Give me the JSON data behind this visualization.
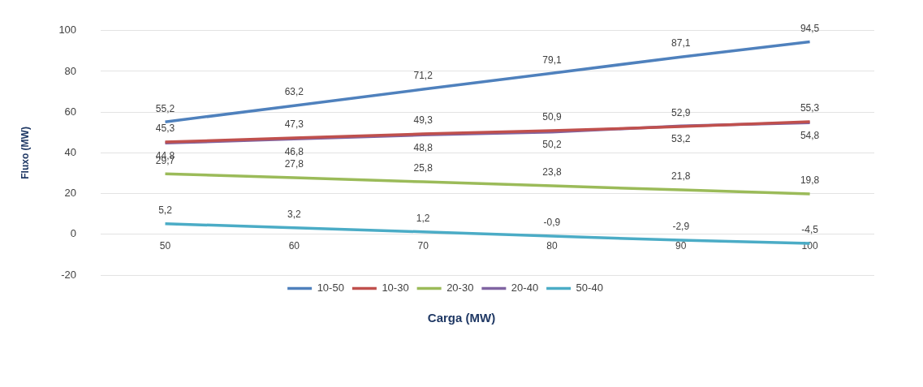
{
  "chart_data": {
    "type": "line",
    "xlabel": "Carga (MW)",
    "ylabel": "Fluxo (MW)",
    "categories": [
      "50",
      "60",
      "70",
      "80",
      "90",
      "100"
    ],
    "series": [
      {
        "name": "10-50",
        "color": "#4f81bd",
        "values": [
          55.2,
          63.2,
          71.2,
          79.1,
          87.1,
          94.5
        ],
        "value_labels": [
          "55,2",
          "63,2",
          "71,2",
          "79,1",
          "87,1",
          "94,5"
        ]
      },
      {
        "name": "10-30",
        "color": "#c0504d",
        "values": [
          45.3,
          47.3,
          49.3,
          50.9,
          52.9,
          55.3
        ],
        "value_labels": [
          "45,3",
          "47,3",
          "49,3",
          "50,9",
          "52,9",
          "55,3"
        ]
      },
      {
        "name": "20-30",
        "color": "#9bbb59",
        "values": [
          29.7,
          27.8,
          25.8,
          23.8,
          21.8,
          19.8
        ],
        "value_labels": [
          "29,7",
          "27,8",
          "25,8",
          "23,8",
          "21,8",
          "19,8"
        ]
      },
      {
        "name": "20-40",
        "color": "#8064a2",
        "values": [
          44.8,
          46.8,
          48.8,
          50.2,
          53.2,
          54.8
        ],
        "value_labels": [
          "44,8",
          "46,8",
          "48,8",
          "50,2",
          "53,2",
          "54,8"
        ]
      },
      {
        "name": "50-40",
        "color": "#4bacc6",
        "values": [
          5.2,
          3.2,
          1.2,
          -0.9,
          -2.9,
          -4.5
        ],
        "value_labels": [
          "5,2",
          "3,2",
          "1,2",
          "-0,9",
          "-2,9",
          "-4,5"
        ]
      }
    ],
    "ylim": [
      -20,
      100
    ],
    "yticks": [
      -20,
      0,
      20,
      40,
      60,
      80,
      100
    ],
    "grid": "y",
    "legend": "bottom",
    "marker": "none",
    "line_style": "solid"
  }
}
